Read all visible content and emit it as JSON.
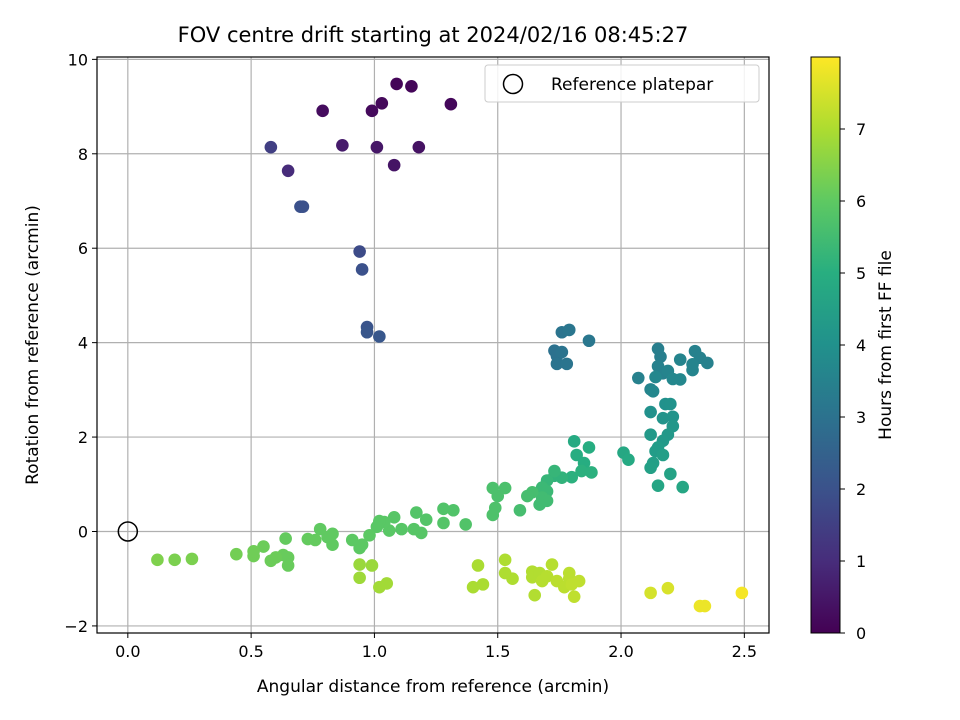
{
  "chart_data": {
    "type": "scatter",
    "title": "FOV centre drift starting at 2024/02/16 08:45:27",
    "xlabel": "Angular distance from reference (arcmin)",
    "ylabel": "Rotation from reference (arcmin)",
    "xlim": [
      -0.125,
      2.6
    ],
    "ylim": [
      -2.15,
      10.05
    ],
    "xticks": [
      0.0,
      0.5,
      1.0,
      1.5,
      2.0,
      2.5
    ],
    "xtick_labels": [
      "0.0",
      "0.5",
      "1.0",
      "1.5",
      "2.0",
      "2.5"
    ],
    "yticks": [
      -2,
      0,
      2,
      4,
      6,
      8,
      10
    ],
    "ytick_labels": [
      "−2",
      "0",
      "2",
      "4",
      "6",
      "8",
      "10"
    ],
    "grid": true,
    "colormap": "viridis",
    "colorbar": {
      "label": "Hours from first FF file",
      "range": [
        0,
        8
      ],
      "ticks": [
        0,
        1,
        2,
        3,
        4,
        5,
        6,
        7
      ],
      "tick_labels": [
        "0",
        "1",
        "2",
        "3",
        "4",
        "5",
        "6",
        "7"
      ]
    },
    "legend": {
      "entries": [
        "Reference platepar"
      ],
      "placement": "top-right"
    },
    "reference_point": {
      "x": 0.0,
      "y": 0.0
    },
    "series": [
      {
        "name": "",
        "points": [
          {
            "x": 1.09,
            "y": 9.48,
            "h": 0.1
          },
          {
            "x": 1.15,
            "y": 9.43,
            "h": 0.12
          },
          {
            "x": 1.31,
            "y": 9.05,
            "h": 0.15
          },
          {
            "x": 1.03,
            "y": 9.07,
            "h": 0.18
          },
          {
            "x": 0.99,
            "y": 8.91,
            "h": 0.2
          },
          {
            "x": 0.79,
            "y": 8.91,
            "h": 0.25
          },
          {
            "x": 1.18,
            "y": 8.14,
            "h": 0.4
          },
          {
            "x": 1.08,
            "y": 7.76,
            "h": 0.45
          },
          {
            "x": 1.01,
            "y": 8.14,
            "h": 0.5
          },
          {
            "x": 0.87,
            "y": 8.18,
            "h": 0.6
          },
          {
            "x": 0.65,
            "y": 7.64,
            "h": 1.0
          },
          {
            "x": 0.58,
            "y": 8.14,
            "h": 1.5
          },
          {
            "x": 0.7,
            "y": 6.88,
            "h": 2.0
          },
          {
            "x": 0.71,
            "y": 6.88,
            "h": 2.0
          },
          {
            "x": 0.94,
            "y": 5.93,
            "h": 1.85
          },
          {
            "x": 0.95,
            "y": 5.55,
            "h": 2.0
          },
          {
            "x": 0.97,
            "y": 4.33,
            "h": 2.1
          },
          {
            "x": 0.97,
            "y": 4.22,
            "h": 2.15
          },
          {
            "x": 1.02,
            "y": 4.13,
            "h": 2.2
          },
          {
            "x": 1.73,
            "y": 3.83,
            "h": 3.0
          },
          {
            "x": 1.74,
            "y": 3.72,
            "h": 3.0
          },
          {
            "x": 1.74,
            "y": 3.55,
            "h": 3.05
          },
          {
            "x": 1.76,
            "y": 3.8,
            "h": 3.05
          },
          {
            "x": 1.78,
            "y": 3.55,
            "h": 3.1
          },
          {
            "x": 1.76,
            "y": 4.22,
            "h": 3.1
          },
          {
            "x": 1.79,
            "y": 4.27,
            "h": 3.15
          },
          {
            "x": 1.87,
            "y": 4.04,
            "h": 3.2
          },
          {
            "x": 2.07,
            "y": 3.25,
            "h": 3.5
          },
          {
            "x": 2.12,
            "y": 3.01,
            "h": 3.6
          },
          {
            "x": 2.13,
            "y": 2.97,
            "h": 3.7
          },
          {
            "x": 2.15,
            "y": 3.87,
            "h": 3.4
          },
          {
            "x": 2.16,
            "y": 3.7,
            "h": 3.4
          },
          {
            "x": 2.15,
            "y": 3.5,
            "h": 3.5
          },
          {
            "x": 2.17,
            "y": 3.35,
            "h": 3.5
          },
          {
            "x": 2.19,
            "y": 3.4,
            "h": 3.6
          },
          {
            "x": 2.21,
            "y": 3.23,
            "h": 3.7
          },
          {
            "x": 2.24,
            "y": 3.22,
            "h": 3.7
          },
          {
            "x": 2.24,
            "y": 3.64,
            "h": 3.6
          },
          {
            "x": 2.29,
            "y": 3.42,
            "h": 3.6
          },
          {
            "x": 2.3,
            "y": 3.82,
            "h": 3.5
          },
          {
            "x": 2.32,
            "y": 3.68,
            "h": 3.5
          },
          {
            "x": 2.35,
            "y": 3.57,
            "h": 3.5
          },
          {
            "x": 2.29,
            "y": 3.54,
            "h": 3.6
          },
          {
            "x": 2.14,
            "y": 3.27,
            "h": 3.7
          },
          {
            "x": 2.12,
            "y": 2.53,
            "h": 4.0
          },
          {
            "x": 2.18,
            "y": 2.7,
            "h": 4.0
          },
          {
            "x": 2.2,
            "y": 2.7,
            "h": 4.05
          },
          {
            "x": 2.17,
            "y": 2.4,
            "h": 4.1
          },
          {
            "x": 2.21,
            "y": 2.43,
            "h": 4.1
          },
          {
            "x": 2.21,
            "y": 2.23,
            "h": 4.2
          },
          {
            "x": 2.19,
            "y": 2.05,
            "h": 4.25
          },
          {
            "x": 2.12,
            "y": 2.05,
            "h": 4.3
          },
          {
            "x": 2.17,
            "y": 1.92,
            "h": 4.3
          },
          {
            "x": 2.15,
            "y": 1.78,
            "h": 4.4
          },
          {
            "x": 2.14,
            "y": 1.7,
            "h": 4.4
          },
          {
            "x": 2.17,
            "y": 1.62,
            "h": 4.45
          },
          {
            "x": 2.13,
            "y": 1.45,
            "h": 4.5
          },
          {
            "x": 2.12,
            "y": 1.35,
            "h": 4.55
          },
          {
            "x": 2.2,
            "y": 1.22,
            "h": 4.6
          },
          {
            "x": 2.15,
            "y": 0.97,
            "h": 4.7
          },
          {
            "x": 2.25,
            "y": 0.94,
            "h": 4.75
          },
          {
            "x": 2.01,
            "y": 1.67,
            "h": 4.8
          },
          {
            "x": 2.03,
            "y": 1.52,
            "h": 4.85
          },
          {
            "x": 1.81,
            "y": 1.91,
            "h": 4.9
          },
          {
            "x": 1.82,
            "y": 1.62,
            "h": 5.0
          },
          {
            "x": 1.85,
            "y": 1.45,
            "h": 5.0
          },
          {
            "x": 1.87,
            "y": 1.78,
            "h": 5.0
          },
          {
            "x": 1.84,
            "y": 1.28,
            "h": 5.1
          },
          {
            "x": 1.88,
            "y": 1.25,
            "h": 5.1
          },
          {
            "x": 1.8,
            "y": 1.15,
            "h": 5.1
          },
          {
            "x": 1.76,
            "y": 1.14,
            "h": 5.2
          },
          {
            "x": 1.73,
            "y": 1.18,
            "h": 5.2
          },
          {
            "x": 1.73,
            "y": 1.28,
            "h": 5.3
          },
          {
            "x": 1.7,
            "y": 1.08,
            "h": 5.3
          },
          {
            "x": 1.68,
            "y": 0.93,
            "h": 5.4
          },
          {
            "x": 1.7,
            "y": 0.85,
            "h": 5.4
          },
          {
            "x": 1.68,
            "y": 0.72,
            "h": 5.5
          },
          {
            "x": 1.7,
            "y": 0.65,
            "h": 5.5
          },
          {
            "x": 1.67,
            "y": 0.57,
            "h": 5.5
          },
          {
            "x": 1.64,
            "y": 0.83,
            "h": 5.6
          },
          {
            "x": 1.62,
            "y": 0.75,
            "h": 5.6
          },
          {
            "x": 1.59,
            "y": 0.45,
            "h": 5.6
          },
          {
            "x": 1.53,
            "y": 0.92,
            "h": 5.7
          },
          {
            "x": 1.5,
            "y": 0.75,
            "h": 5.7
          },
          {
            "x": 1.48,
            "y": 0.92,
            "h": 5.7
          },
          {
            "x": 1.49,
            "y": 0.5,
            "h": 5.75
          },
          {
            "x": 1.48,
            "y": 0.35,
            "h": 5.75
          },
          {
            "x": 1.37,
            "y": 0.15,
            "h": 5.8
          },
          {
            "x": 1.32,
            "y": 0.45,
            "h": 5.8
          },
          {
            "x": 1.28,
            "y": 0.48,
            "h": 5.8
          },
          {
            "x": 1.28,
            "y": 0.18,
            "h": 5.85
          },
          {
            "x": 1.21,
            "y": 0.25,
            "h": 5.85
          },
          {
            "x": 1.17,
            "y": 0.4,
            "h": 5.85
          },
          {
            "x": 1.19,
            "y": -0.03,
            "h": 5.9
          },
          {
            "x": 1.16,
            "y": 0.05,
            "h": 5.9
          },
          {
            "x": 1.11,
            "y": 0.05,
            "h": 5.9
          },
          {
            "x": 1.08,
            "y": 0.3,
            "h": 5.9
          },
          {
            "x": 1.06,
            "y": 0.02,
            "h": 5.95
          },
          {
            "x": 1.04,
            "y": 0.2,
            "h": 5.95
          },
          {
            "x": 1.02,
            "y": 0.22,
            "h": 5.95
          },
          {
            "x": 1.01,
            "y": 0.1,
            "h": 5.95
          },
          {
            "x": 0.98,
            "y": -0.08,
            "h": 6.0
          },
          {
            "x": 0.94,
            "y": -0.35,
            "h": 6.0
          },
          {
            "x": 0.95,
            "y": -0.28,
            "h": 6.0
          },
          {
            "x": 0.91,
            "y": -0.18,
            "h": 6.0
          },
          {
            "x": 0.83,
            "y": -0.05,
            "h": 6.05
          },
          {
            "x": 0.83,
            "y": -0.28,
            "h": 6.05
          },
          {
            "x": 0.81,
            "y": -0.12,
            "h": 6.05
          },
          {
            "x": 0.78,
            "y": 0.05,
            "h": 6.05
          },
          {
            "x": 0.76,
            "y": -0.18,
            "h": 6.1
          },
          {
            "x": 0.73,
            "y": -0.16,
            "h": 6.1
          },
          {
            "x": 0.64,
            "y": -0.15,
            "h": 6.1
          },
          {
            "x": 0.65,
            "y": -0.55,
            "h": 6.15
          },
          {
            "x": 0.63,
            "y": -0.5,
            "h": 6.15
          },
          {
            "x": 0.65,
            "y": -0.72,
            "h": 6.15
          },
          {
            "x": 0.6,
            "y": -0.55,
            "h": 6.2
          },
          {
            "x": 0.58,
            "y": -0.62,
            "h": 6.2
          },
          {
            "x": 0.55,
            "y": -0.32,
            "h": 6.2
          },
          {
            "x": 0.51,
            "y": -0.52,
            "h": 6.25
          },
          {
            "x": 0.51,
            "y": -0.42,
            "h": 6.25
          },
          {
            "x": 0.44,
            "y": -0.48,
            "h": 6.3
          },
          {
            "x": 0.26,
            "y": -0.58,
            "h": 6.4
          },
          {
            "x": 0.19,
            "y": -0.6,
            "h": 6.4
          },
          {
            "x": 0.12,
            "y": -0.6,
            "h": 6.45
          },
          {
            "x": 0.94,
            "y": -0.7,
            "h": 6.8
          },
          {
            "x": 0.99,
            "y": -0.72,
            "h": 6.8
          },
          {
            "x": 0.94,
            "y": -0.98,
            "h": 6.85
          },
          {
            "x": 1.02,
            "y": -1.18,
            "h": 6.9
          },
          {
            "x": 1.05,
            "y": -1.1,
            "h": 6.9
          },
          {
            "x": 1.42,
            "y": -0.72,
            "h": 7.0
          },
          {
            "x": 1.44,
            "y": -1.12,
            "h": 7.0
          },
          {
            "x": 1.4,
            "y": -1.18,
            "h": 7.0
          },
          {
            "x": 1.53,
            "y": -0.6,
            "h": 7.05
          },
          {
            "x": 1.53,
            "y": -0.88,
            "h": 7.05
          },
          {
            "x": 1.56,
            "y": -1.0,
            "h": 7.05
          },
          {
            "x": 1.64,
            "y": -0.85,
            "h": 7.1
          },
          {
            "x": 1.64,
            "y": -0.97,
            "h": 7.1
          },
          {
            "x": 1.65,
            "y": -1.35,
            "h": 7.1
          },
          {
            "x": 1.67,
            "y": -0.88,
            "h": 7.1
          },
          {
            "x": 1.68,
            "y": -1.05,
            "h": 7.15
          },
          {
            "x": 1.7,
            "y": -0.95,
            "h": 7.15
          },
          {
            "x": 1.72,
            "y": -0.7,
            "h": 7.15
          },
          {
            "x": 1.74,
            "y": -1.05,
            "h": 7.2
          },
          {
            "x": 1.77,
            "y": -1.18,
            "h": 7.2
          },
          {
            "x": 1.79,
            "y": -0.88,
            "h": 7.2
          },
          {
            "x": 1.79,
            "y": -1.0,
            "h": 7.2
          },
          {
            "x": 1.8,
            "y": -1.12,
            "h": 7.25
          },
          {
            "x": 1.81,
            "y": -1.38,
            "h": 7.25
          },
          {
            "x": 1.83,
            "y": -1.05,
            "h": 7.25
          },
          {
            "x": 2.12,
            "y": -1.3,
            "h": 7.5
          },
          {
            "x": 2.19,
            "y": -1.2,
            "h": 7.55
          },
          {
            "x": 2.32,
            "y": -1.58,
            "h": 7.8
          },
          {
            "x": 2.34,
            "y": -1.58,
            "h": 7.8
          },
          {
            "x": 2.49,
            "y": -1.3,
            "h": 7.9
          }
        ]
      }
    ]
  }
}
